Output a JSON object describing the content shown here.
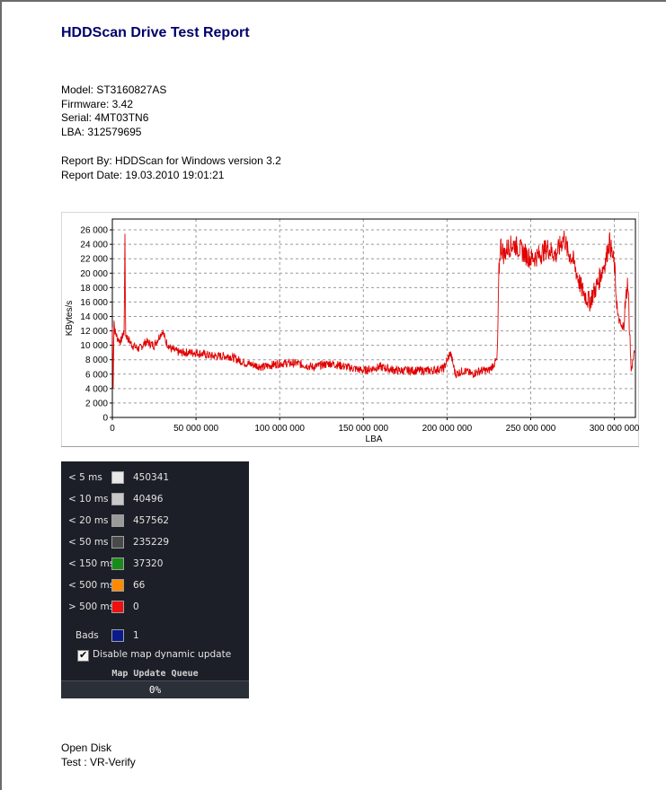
{
  "report": {
    "title": "HDDScan Drive Test Report",
    "model": "Model: ST3160827AS",
    "firmware": "Firmware: 3.42",
    "serial": "Serial: 4MT03TN6",
    "lba": "LBA: 312579695",
    "report_by": "Report By: HDDScan for Windows version 3.2",
    "report_date": "Report Date: 19.03.2010 19:01:21",
    "footer_line1": "Open Disk",
    "footer_line2": "Test : VR-Verify"
  },
  "chart_data": {
    "type": "line",
    "title": "",
    "xlabel": "LBA",
    "ylabel": "KBytes/s",
    "xlim": [
      0,
      312579695
    ],
    "ylim": [
      0,
      27500
    ],
    "grid": true,
    "x_ticks": [
      0,
      50000000,
      100000000,
      150000000,
      200000000,
      250000000,
      300000000
    ],
    "x_tick_labels": [
      "0",
      "50 000 000",
      "100 000 000",
      "150 000 000",
      "200 000 000",
      "250 000 000",
      "300 000 000"
    ],
    "y_ticks": [
      0,
      2000,
      4000,
      6000,
      8000,
      10000,
      12000,
      14000,
      16000,
      18000,
      20000,
      22000,
      24000,
      26000
    ],
    "y_tick_labels": [
      "0",
      "2 000",
      "4 000",
      "6 000",
      "8 000",
      "10 000",
      "12 000",
      "14 000",
      "16 000",
      "18 000",
      "20 000",
      "22 000",
      "24 000",
      "26 000"
    ],
    "series": [
      {
        "color": "#e00000",
        "x": [
          0,
          500000,
          1000000,
          1500000,
          3000000,
          5000000,
          7000000,
          7500000,
          8000000,
          9000000,
          12000000,
          16000000,
          20000000,
          25000000,
          30000000,
          32000000,
          35000000,
          40000000,
          50000000,
          60000000,
          70000000,
          80000000,
          90000000,
          100000000,
          110000000,
          120000000,
          130000000,
          140000000,
          150000000,
          160000000,
          170000000,
          180000000,
          190000000,
          198000000,
          202000000,
          205000000,
          210000000,
          215000000,
          220000000,
          225000000,
          230000000,
          231000000,
          232000000,
          234000000,
          236000000,
          240000000,
          245000000,
          250000000,
          255000000,
          260000000,
          265000000,
          270000000,
          272000000,
          275000000,
          280000000,
          285000000,
          290000000,
          295000000,
          297000000,
          300000000,
          302000000,
          305000000,
          308000000,
          310000000,
          312000000
        ],
        "y": [
          12500,
          4500,
          13500,
          12000,
          11000,
          10500,
          12000,
          24000,
          11500,
          11000,
          10000,
          9500,
          10500,
          10000,
          12000,
          10500,
          9500,
          9000,
          9000,
          8500,
          8500,
          7500,
          7000,
          7500,
          7500,
          7000,
          7500,
          7000,
          6500,
          7000,
          6500,
          6500,
          6500,
          6800,
          9000,
          6000,
          6500,
          6000,
          6500,
          6500,
          8000,
          20000,
          24000,
          22500,
          23500,
          24000,
          23000,
          22000,
          22500,
          23500,
          22500,
          25000,
          23000,
          22000,
          18000,
          16000,
          18500,
          22000,
          24500,
          21000,
          14000,
          12000,
          19000,
          6500,
          9000
        ]
      }
    ]
  },
  "legend": {
    "rows": [
      {
        "label": "< 5 ms",
        "count": "450341",
        "color": "#e8e8e8"
      },
      {
        "label": "< 10 ms",
        "count": "40496",
        "color": "#c8c8c8"
      },
      {
        "label": "< 20 ms",
        "count": "457562",
        "color": "#9a9a9a"
      },
      {
        "label": "< 50 ms",
        "count": "235229",
        "color": "#4a4a4a"
      },
      {
        "label": "< 150 ms",
        "count": "37320",
        "color": "#1a8a1a"
      },
      {
        "label": "< 500 ms",
        "count": "66",
        "color": "#ff8a00"
      },
      {
        "label": "> 500 ms",
        "count": "0",
        "color": "#ee1111"
      },
      {
        "label": "Bads",
        "count": "1",
        "color": "#0a1a8a"
      }
    ],
    "checkbox_label": "Disable map dynamic update",
    "checkbox_checked": true,
    "checkbox_glyph": "✔",
    "queue_label": "Map Update Queue",
    "queue_value": "0%"
  }
}
